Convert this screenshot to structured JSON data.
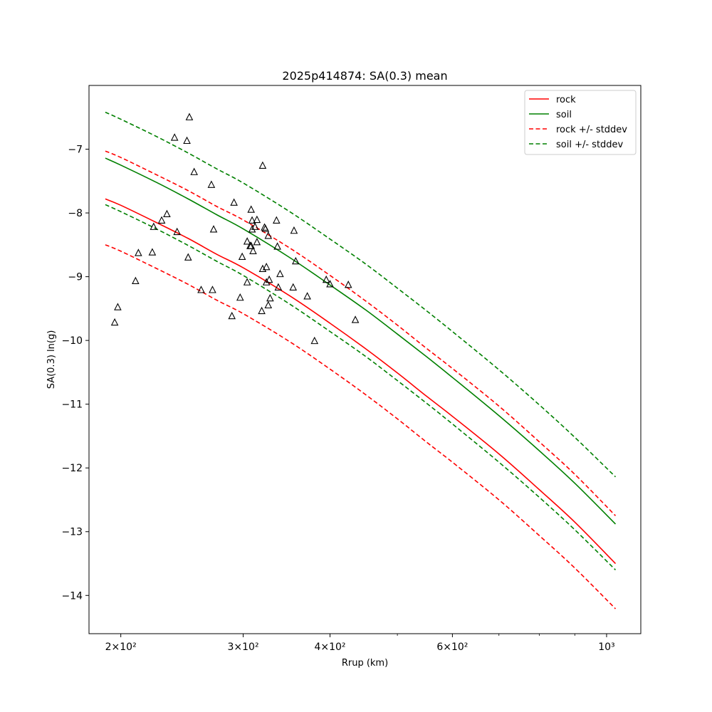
{
  "chart_data": {
    "type": "line",
    "title": "2025p414874: SA(0.3) mean",
    "xlabel": "Rrup (km)",
    "ylabel": "SA(0.3) ln(g)",
    "xscale": "log",
    "xlim": [
      180,
      1120
    ],
    "ylim": [
      -14.6,
      -6.0
    ],
    "grid": false,
    "legend_position": "top-right",
    "x_ticks": [
      {
        "value": 200,
        "label": "2×10²"
      },
      {
        "value": 300,
        "label": "3×10²"
      },
      {
        "value": 400,
        "label": "4×10²"
      },
      {
        "value": 600,
        "label": "6×10²"
      },
      {
        "value": 1000,
        "label": "10³"
      }
    ],
    "x_minor_ticks": [
      500,
      700,
      800,
      900
    ],
    "y_ticks": [
      {
        "value": -7,
        "label": "−7"
      },
      {
        "value": -8,
        "label": "−8"
      },
      {
        "value": -9,
        "label": "−9"
      },
      {
        "value": -10,
        "label": "−10"
      },
      {
        "value": -11,
        "label": "−11"
      },
      {
        "value": -12,
        "label": "−12"
      },
      {
        "value": -13,
        "label": "−13"
      },
      {
        "value": -14,
        "label": "−14"
      }
    ],
    "x": [
      190,
      200,
      225,
      250,
      275,
      300,
      350,
      400,
      450,
      500,
      550,
      600,
      700,
      800,
      900,
      1030
    ],
    "series": [
      {
        "name": "rock",
        "color": "#ff0000",
        "dash": false,
        "values": [
          -7.78,
          -7.88,
          -8.15,
          -8.4,
          -8.65,
          -8.86,
          -9.3,
          -9.73,
          -10.13,
          -10.51,
          -10.87,
          -11.19,
          -11.78,
          -12.34,
          -12.85,
          -13.5
        ]
      },
      {
        "name": "soil",
        "color": "#008000",
        "dash": false,
        "values": [
          -7.14,
          -7.25,
          -7.52,
          -7.78,
          -8.03,
          -8.25,
          -8.7,
          -9.13,
          -9.52,
          -9.9,
          -10.25,
          -10.58,
          -11.18,
          -11.73,
          -12.24,
          -12.88
        ]
      },
      {
        "name": "rock +/- stddev",
        "color": "#ff0000",
        "dash": true,
        "values": [
          -7.03,
          -7.13,
          -7.4,
          -7.65,
          -7.9,
          -8.11,
          -8.55,
          -8.98,
          -9.38,
          -9.76,
          -10.12,
          -10.44,
          -11.03,
          -11.59,
          -12.1,
          -12.75
        ]
      },
      {
        "name": "",
        "color": "#ff0000",
        "dash": true,
        "legend": false,
        "values": [
          -8.5,
          -8.6,
          -8.87,
          -9.12,
          -9.37,
          -9.58,
          -10.02,
          -10.45,
          -10.85,
          -11.23,
          -11.59,
          -11.91,
          -12.5,
          -13.06,
          -13.57,
          -14.21
        ]
      },
      {
        "name": "soil +/- stddev",
        "color": "#008000",
        "dash": true,
        "values": [
          -6.42,
          -6.53,
          -6.8,
          -7.06,
          -7.31,
          -7.53,
          -7.98,
          -8.41,
          -8.8,
          -9.18,
          -9.53,
          -9.86,
          -10.46,
          -11.01,
          -11.52,
          -12.14
        ]
      },
      {
        "name": "",
        "color": "#008000",
        "dash": true,
        "legend": false,
        "values": [
          -7.87,
          -7.98,
          -8.25,
          -8.51,
          -8.76,
          -8.98,
          -9.43,
          -9.86,
          -10.25,
          -10.63,
          -10.98,
          -11.31,
          -11.91,
          -12.46,
          -12.97,
          -13.6
        ]
      }
    ],
    "observations": {
      "marker": "triangle",
      "color": "#000000",
      "points": [
        [
          196,
          -9.72
        ],
        [
          198,
          -9.48
        ],
        [
          210,
          -9.07
        ],
        [
          212,
          -8.63
        ],
        [
          222,
          -8.62
        ],
        [
          223,
          -8.22
        ],
        [
          229,
          -8.12
        ],
        [
          233,
          -8.02
        ],
        [
          239,
          -6.82
        ],
        [
          241,
          -8.3
        ],
        [
          249,
          -6.87
        ],
        [
          250,
          -8.7
        ],
        [
          251,
          -6.5
        ],
        [
          255,
          -7.36
        ],
        [
          261,
          -9.21
        ],
        [
          270,
          -7.56
        ],
        [
          271,
          -9.21
        ],
        [
          272,
          -8.26
        ],
        [
          289,
          -9.62
        ],
        [
          291,
          -7.84
        ],
        [
          297,
          -9.33
        ],
        [
          299,
          -8.69
        ],
        [
          304,
          -9.09
        ],
        [
          304,
          -8.45
        ],
        [
          307,
          -8.52
        ],
        [
          308,
          -8.52
        ],
        [
          308,
          -7.95
        ],
        [
          309,
          -8.12
        ],
        [
          309,
          -8.26
        ],
        [
          310,
          -8.6
        ],
        [
          312,
          -8.22
        ],
        [
          314,
          -8.46
        ],
        [
          314,
          -8.11
        ],
        [
          319,
          -9.54
        ],
        [
          320,
          -8.88
        ],
        [
          320,
          -7.26
        ],
        [
          322,
          -8.23
        ],
        [
          323,
          -8.25
        ],
        [
          324,
          -8.85
        ],
        [
          324,
          -9.09
        ],
        [
          326,
          -8.36
        ],
        [
          326,
          -9.45
        ],
        [
          327,
          -9.05
        ],
        [
          328,
          -9.34
        ],
        [
          335,
          -8.12
        ],
        [
          336,
          -8.53
        ],
        [
          337,
          -9.17
        ],
        [
          339,
          -8.96
        ],
        [
          354,
          -9.17
        ],
        [
          355,
          -8.28
        ],
        [
          357,
          -8.76
        ],
        [
          371,
          -9.31
        ],
        [
          380,
          -10.01
        ],
        [
          395,
          -9.05
        ],
        [
          400,
          -9.12
        ],
        [
          425,
          -9.13
        ],
        [
          435,
          -9.68
        ]
      ]
    }
  }
}
